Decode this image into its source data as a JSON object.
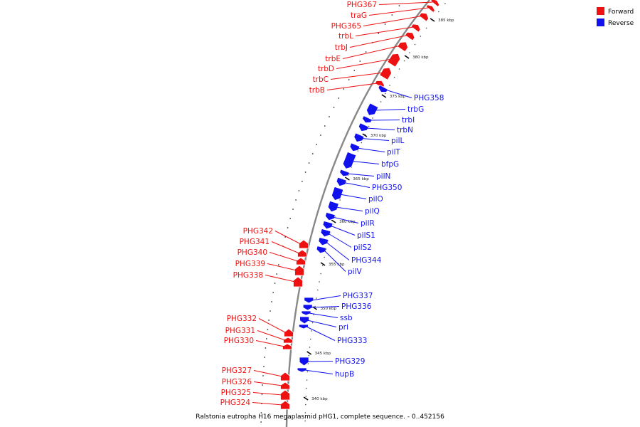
{
  "colors": {
    "forward": "#ee1111",
    "reverse": "#1111ee",
    "backbone": "#888888"
  },
  "legend": [
    {
      "key": "forward",
      "label": "Forward"
    },
    {
      "key": "reverse",
      "label": "Reverse"
    }
  ],
  "caption": "Ralstonia eutropha H16 megaplasmid pHG1, complete sequence. - 0..452156",
  "axis_ticks": [
    "385 kbp",
    "380 kbp",
    "375 kbp",
    "370 kbp",
    "365 kbp",
    "360 kbp",
    "355 kbp",
    "350 kbp",
    "345 kbp",
    "340 kbp"
  ],
  "genes": [
    {
      "label": "PHG367",
      "strand": "forward"
    },
    {
      "label": "traG",
      "strand": "forward"
    },
    {
      "label": "PHG365",
      "strand": "forward"
    },
    {
      "label": "trbL",
      "strand": "forward"
    },
    {
      "label": "trbJ",
      "strand": "forward"
    },
    {
      "label": "trbE",
      "strand": "forward"
    },
    {
      "label": "trbD",
      "strand": "forward"
    },
    {
      "label": "trbC",
      "strand": "forward"
    },
    {
      "label": "trbB",
      "strand": "forward"
    },
    {
      "label": "PHG358",
      "strand": "reverse"
    },
    {
      "label": "trbG",
      "strand": "reverse"
    },
    {
      "label": "trbI",
      "strand": "reverse"
    },
    {
      "label": "trbN",
      "strand": "reverse"
    },
    {
      "label": "pilL",
      "strand": "reverse"
    },
    {
      "label": "pilT",
      "strand": "reverse"
    },
    {
      "label": "bfpG",
      "strand": "reverse"
    },
    {
      "label": "pilN",
      "strand": "reverse"
    },
    {
      "label": "PHG350",
      "strand": "reverse"
    },
    {
      "label": "pilO",
      "strand": "reverse"
    },
    {
      "label": "pilQ",
      "strand": "reverse"
    },
    {
      "label": "pilR",
      "strand": "reverse"
    },
    {
      "label": "pilS1",
      "strand": "reverse"
    },
    {
      "label": "pilS2",
      "strand": "reverse"
    },
    {
      "label": "PHG344",
      "strand": "reverse"
    },
    {
      "label": "pilV",
      "strand": "reverse"
    },
    {
      "label": "PHG342",
      "strand": "forward"
    },
    {
      "label": "PHG341",
      "strand": "forward"
    },
    {
      "label": "PHG340",
      "strand": "forward"
    },
    {
      "label": "PHG339",
      "strand": "forward"
    },
    {
      "label": "PHG338",
      "strand": "forward"
    },
    {
      "label": "PHG337",
      "strand": "reverse"
    },
    {
      "label": "PHG336",
      "strand": "reverse"
    },
    {
      "label": "ssb",
      "strand": "reverse"
    },
    {
      "label": "pri",
      "strand": "reverse"
    },
    {
      "label": "PHG333",
      "strand": "reverse"
    },
    {
      "label": "PHG332",
      "strand": "forward"
    },
    {
      "label": "PHG331",
      "strand": "forward"
    },
    {
      "label": "PHG330",
      "strand": "forward"
    },
    {
      "label": "PHG329",
      "strand": "reverse"
    },
    {
      "label": "hupB",
      "strand": "reverse"
    },
    {
      "label": "PHG327",
      "strand": "forward"
    },
    {
      "label": "PHG326",
      "strand": "forward"
    },
    {
      "label": "PHG325",
      "strand": "forward"
    },
    {
      "label": "PHG324",
      "strand": "forward"
    }
  ]
}
